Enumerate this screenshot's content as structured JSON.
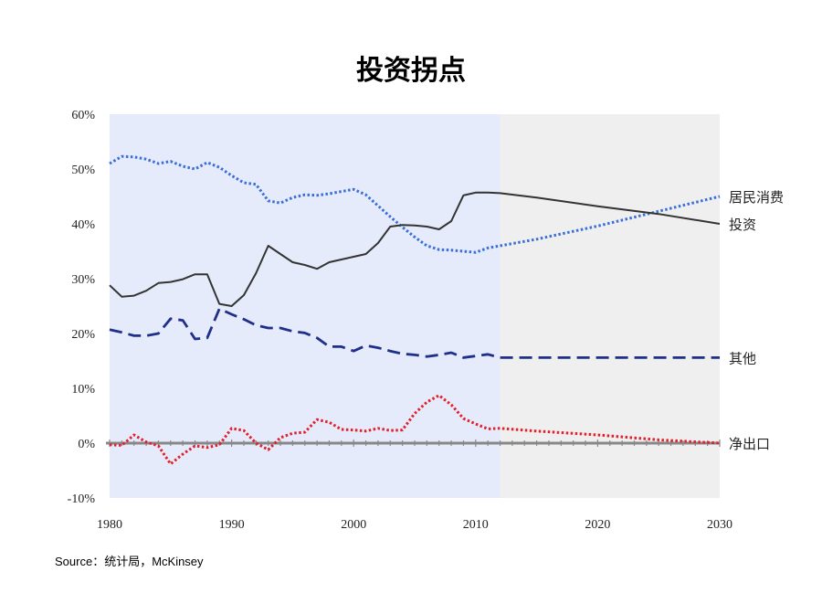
{
  "title": "投资拐点",
  "source": "Source：统计局，McKinsey",
  "chart_data": {
    "type": "line",
    "title": "投资拐点",
    "xlim": [
      1980,
      2030
    ],
    "ylim": [
      -10,
      60
    ],
    "x_ticks": [
      "1980",
      "1990",
      "2000",
      "2010",
      "2020",
      "2030"
    ],
    "y_ticks": [
      "60%",
      "50%",
      "40%",
      "30%",
      "20%",
      "10%",
      "0%",
      "-10%"
    ],
    "historical_end_year": 2012,
    "shading": {
      "historical": "#e6ebfb",
      "forecast": "#efefef"
    },
    "grid": false,
    "series": [
      {
        "name": "居民消费",
        "color": "#3a6fd8",
        "style": "dotted",
        "x": [
          1980,
          1981,
          1982,
          1983,
          1984,
          1985,
          1986,
          1987,
          1988,
          1989,
          1990,
          1991,
          1992,
          1993,
          1994,
          1995,
          1996,
          1997,
          1998,
          1999,
          2000,
          2001,
          2002,
          2003,
          2004,
          2005,
          2006,
          2007,
          2008,
          2009,
          2010,
          2011,
          2012,
          2015,
          2020,
          2025,
          2030
        ],
        "y": [
          51,
          52.3,
          52.2,
          51.8,
          51.0,
          51.4,
          50.5,
          50.0,
          51.2,
          50.3,
          48.8,
          47.5,
          47.2,
          44.2,
          43.8,
          44.8,
          45.3,
          45.2,
          45.5,
          45.9,
          46.3,
          45.3,
          43.3,
          41.3,
          39.4,
          37.6,
          36.0,
          35.3,
          35.2,
          35.0,
          34.8,
          35.6,
          36.0,
          37.2,
          39.6,
          42.3,
          45.0
        ]
      },
      {
        "name": "投资",
        "color": "#333333",
        "style": "solid",
        "x": [
          1980,
          1981,
          1982,
          1983,
          1984,
          1985,
          1986,
          1987,
          1988,
          1989,
          1990,
          1991,
          1992,
          1993,
          1994,
          1995,
          1996,
          1997,
          1998,
          1999,
          2000,
          2001,
          2002,
          2003,
          2004,
          2005,
          2006,
          2007,
          2008,
          2009,
          2010,
          2011,
          2012,
          2015,
          2020,
          2025,
          2030
        ],
        "y": [
          28.8,
          26.7,
          26.9,
          27.8,
          29.2,
          29.4,
          29.9,
          30.8,
          30.8,
          25.4,
          25.0,
          27.0,
          31.0,
          36.0,
          34.5,
          33.0,
          32.5,
          31.8,
          33.0,
          33.5,
          34.0,
          34.5,
          36.5,
          39.5,
          39.8,
          39.7,
          39.5,
          39.0,
          40.5,
          45.2,
          45.7,
          45.7,
          45.6,
          44.8,
          43.2,
          41.8,
          40.0
        ]
      },
      {
        "name": "其他",
        "color": "#1f2f8a",
        "style": "dashed",
        "x": [
          1980,
          1981,
          1982,
          1983,
          1984,
          1985,
          1986,
          1987,
          1988,
          1989,
          1990,
          1991,
          1992,
          1993,
          1994,
          1995,
          1996,
          1997,
          1998,
          1999,
          2000,
          2001,
          2002,
          2003,
          2004,
          2005,
          2006,
          2007,
          2008,
          2009,
          2010,
          2011,
          2012,
          2015,
          2020,
          2025,
          2030
        ],
        "y": [
          20.7,
          20.2,
          19.6,
          19.6,
          20.0,
          22.7,
          22.4,
          19.0,
          19.2,
          24.5,
          23.5,
          22.6,
          21.5,
          21.0,
          21.0,
          20.4,
          20.1,
          19.2,
          17.6,
          17.6,
          16.8,
          17.8,
          17.4,
          16.8,
          16.3,
          16.1,
          15.8,
          16.1,
          16.5,
          15.6,
          15.9,
          16.2,
          15.6,
          15.6,
          15.6,
          15.6,
          15.6
        ]
      },
      {
        "name": "净出口",
        "color": "#e0202a",
        "style": "dotted",
        "x": [
          1980,
          1981,
          1982,
          1983,
          1984,
          1985,
          1986,
          1987,
          1988,
          1989,
          1990,
          1991,
          1992,
          1993,
          1994,
          1995,
          1996,
          1997,
          1998,
          1999,
          2000,
          2001,
          2002,
          2003,
          2004,
          2005,
          2006,
          2007,
          2008,
          2009,
          2010,
          2011,
          2012,
          2015,
          2020,
          2025,
          2030
        ],
        "y": [
          -0.3,
          -0.4,
          1.5,
          0.2,
          -0.5,
          -3.8,
          -2.0,
          -0.5,
          -0.8,
          -0.3,
          2.7,
          2.3,
          0.0,
          -1.2,
          1.0,
          1.8,
          2.0,
          4.3,
          3.8,
          2.5,
          2.4,
          2.2,
          2.7,
          2.3,
          2.4,
          5.4,
          7.5,
          8.7,
          7.0,
          4.5,
          3.5,
          2.6,
          2.7,
          2.2,
          1.5,
          0.6,
          0.0
        ]
      }
    ],
    "zero_line_color": "#888888"
  }
}
